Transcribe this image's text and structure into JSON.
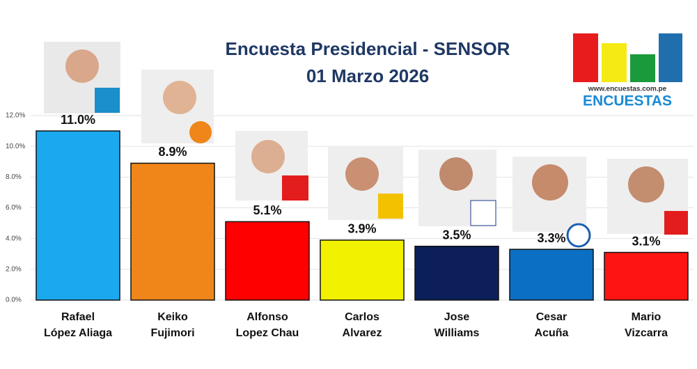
{
  "chart_data": {
    "type": "bar",
    "title": [
      "Encuesta Presidencial - SENSOR",
      "01 Marzo 2026"
    ],
    "brand": {
      "url": "www.encuestas.com.pe",
      "name": "ENCUESTAS"
    },
    "categories": [
      [
        "Rafael",
        "López Aliaga"
      ],
      [
        "Keiko",
        "Fujimori"
      ],
      [
        "Alfonso",
        "Lopez Chau"
      ],
      [
        "Carlos",
        "Alvarez"
      ],
      [
        "Jose",
        "Williams"
      ],
      [
        "Cesar",
        "Acuña"
      ],
      [
        "Mario",
        "Vizcarra"
      ]
    ],
    "values": [
      11.0,
      8.9,
      5.1,
      3.9,
      3.5,
      3.3,
      3.1
    ],
    "value_labels": [
      "11.0%",
      "8.9%",
      "5.1%",
      "3.9%",
      "3.5%",
      "3.3%",
      "3.1%"
    ],
    "colors": [
      "#1aa9ee",
      "#f0861a",
      "#ff0000",
      "#f2f200",
      "#0c1f5a",
      "#0b70c4",
      "#ff1414"
    ],
    "ylim": [
      0,
      12
    ],
    "yticks": [
      {
        "value": 0,
        "label": "0.0%"
      },
      {
        "value": 2,
        "label": "2.0%"
      },
      {
        "value": 4,
        "label": "4.0%"
      },
      {
        "value": 6,
        "label": "6.0%"
      },
      {
        "value": 8,
        "label": "8.0%"
      },
      {
        "value": 10,
        "label": "10.0%"
      },
      {
        "value": 12,
        "label": "12.0%"
      }
    ],
    "grid": true
  }
}
